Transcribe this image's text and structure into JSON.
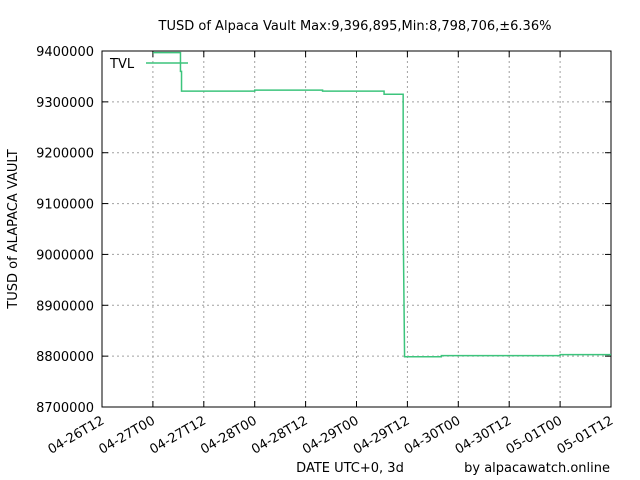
{
  "chart_data": {
    "type": "line",
    "title": "TUSD of Alpaca Vault Max:9,396,895,Min:8,798,706,±6.36%",
    "xlabel": "DATE UTC+0, 3d",
    "ylabel": "TUSD of ALAPACA VAULT",
    "footer": "by alpacawatch.online",
    "grid": true,
    "legend_position": "top-left",
    "line_color": "#3cc47c",
    "x_range": [
      "2023-04-26T12:00",
      "2023-05-01T12:00"
    ],
    "x_tick_values": [
      "2023-04-26T12:00",
      "2023-04-27T00:00",
      "2023-04-27T12:00",
      "2023-04-28T00:00",
      "2023-04-28T12:00",
      "2023-04-29T00:00",
      "2023-04-29T12:00",
      "2023-04-30T00:00",
      "2023-04-30T12:00",
      "2023-05-01T00:00",
      "2023-05-01T12:00"
    ],
    "x_tick_labels": [
      "04-26T12",
      "04-27T00",
      "04-27T12",
      "04-28T00",
      "04-28T12",
      "04-29T00",
      "04-29T12",
      "04-30T00",
      "04-30T12",
      "05-01T00",
      "05-01T12"
    ],
    "ylim": [
      8700000,
      9400000
    ],
    "y_ticks": [
      8700000,
      8800000,
      8900000,
      9000000,
      9100000,
      9200000,
      9300000,
      9400000
    ],
    "y_tick_labels": [
      "8700000",
      "8800000",
      "8900000",
      "9000000",
      "9100000",
      "9200000",
      "9300000",
      "9400000"
    ],
    "series": [
      {
        "name": "TVL",
        "points": [
          [
            "2023-04-27T00:00",
            9396895
          ],
          [
            "2023-04-27T06:30",
            9396895
          ],
          [
            "2023-04-27T06:30",
            9360000
          ],
          [
            "2023-04-27T06:45",
            9360000
          ],
          [
            "2023-04-27T06:45",
            9321000
          ],
          [
            "2023-04-28T00:00",
            9321000
          ],
          [
            "2023-04-28T00:00",
            9323000
          ],
          [
            "2023-04-28T16:00",
            9323000
          ],
          [
            "2023-04-28T16:00",
            9321000
          ],
          [
            "2023-04-29T06:30",
            9321000
          ],
          [
            "2023-04-29T06:30",
            9315000
          ],
          [
            "2023-04-29T11:00",
            9315000
          ],
          [
            "2023-04-29T11:00",
            9060000
          ],
          [
            "2023-04-29T11:20",
            8800000
          ],
          [
            "2023-04-29T11:20",
            8798706
          ],
          [
            "2023-04-29T20:00",
            8798706
          ],
          [
            "2023-04-29T20:00",
            8801000
          ],
          [
            "2023-05-01T00:00",
            8801000
          ],
          [
            "2023-05-01T00:00",
            8803000
          ],
          [
            "2023-05-01T12:00",
            8803000
          ]
        ]
      }
    ]
  }
}
